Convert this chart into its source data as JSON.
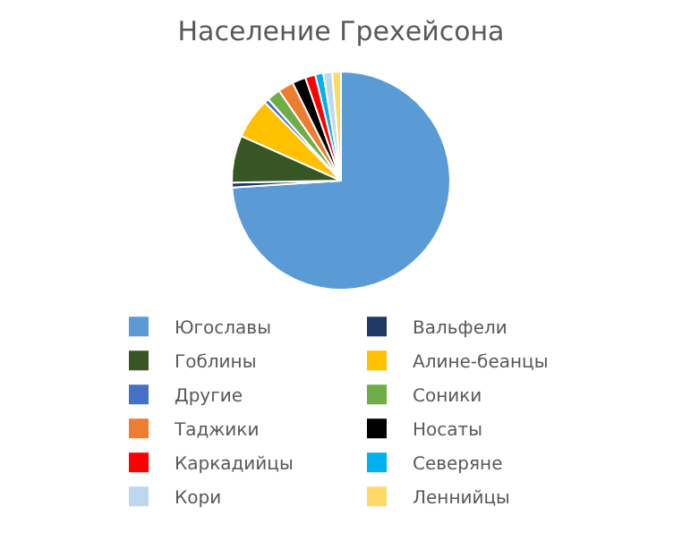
{
  "chart_data": {
    "type": "pie",
    "title": "Население Грехейсона",
    "categories": [
      "Югославы",
      "Вальфели",
      "Гоблины",
      "Алине-беанцы",
      "Другие",
      "Соники",
      "Таджики",
      "Носаты",
      "Каркадийцы",
      "Северяне",
      "Кори",
      "Леннийцы"
    ],
    "values": [
      74,
      0.7,
      7,
      6,
      0.7,
      2,
      2.3,
      2,
      1.5,
      1.2,
      1.3,
      1.3
    ],
    "colors": [
      "#5b9bd5",
      "#1f3864",
      "#375623",
      "#ffc000",
      "#4472c4",
      "#70ad47",
      "#ed7d31",
      "#000000",
      "#ff0000",
      "#00b0f0",
      "#bdd7ee",
      "#ffd966"
    ],
    "legend": "bottom"
  }
}
